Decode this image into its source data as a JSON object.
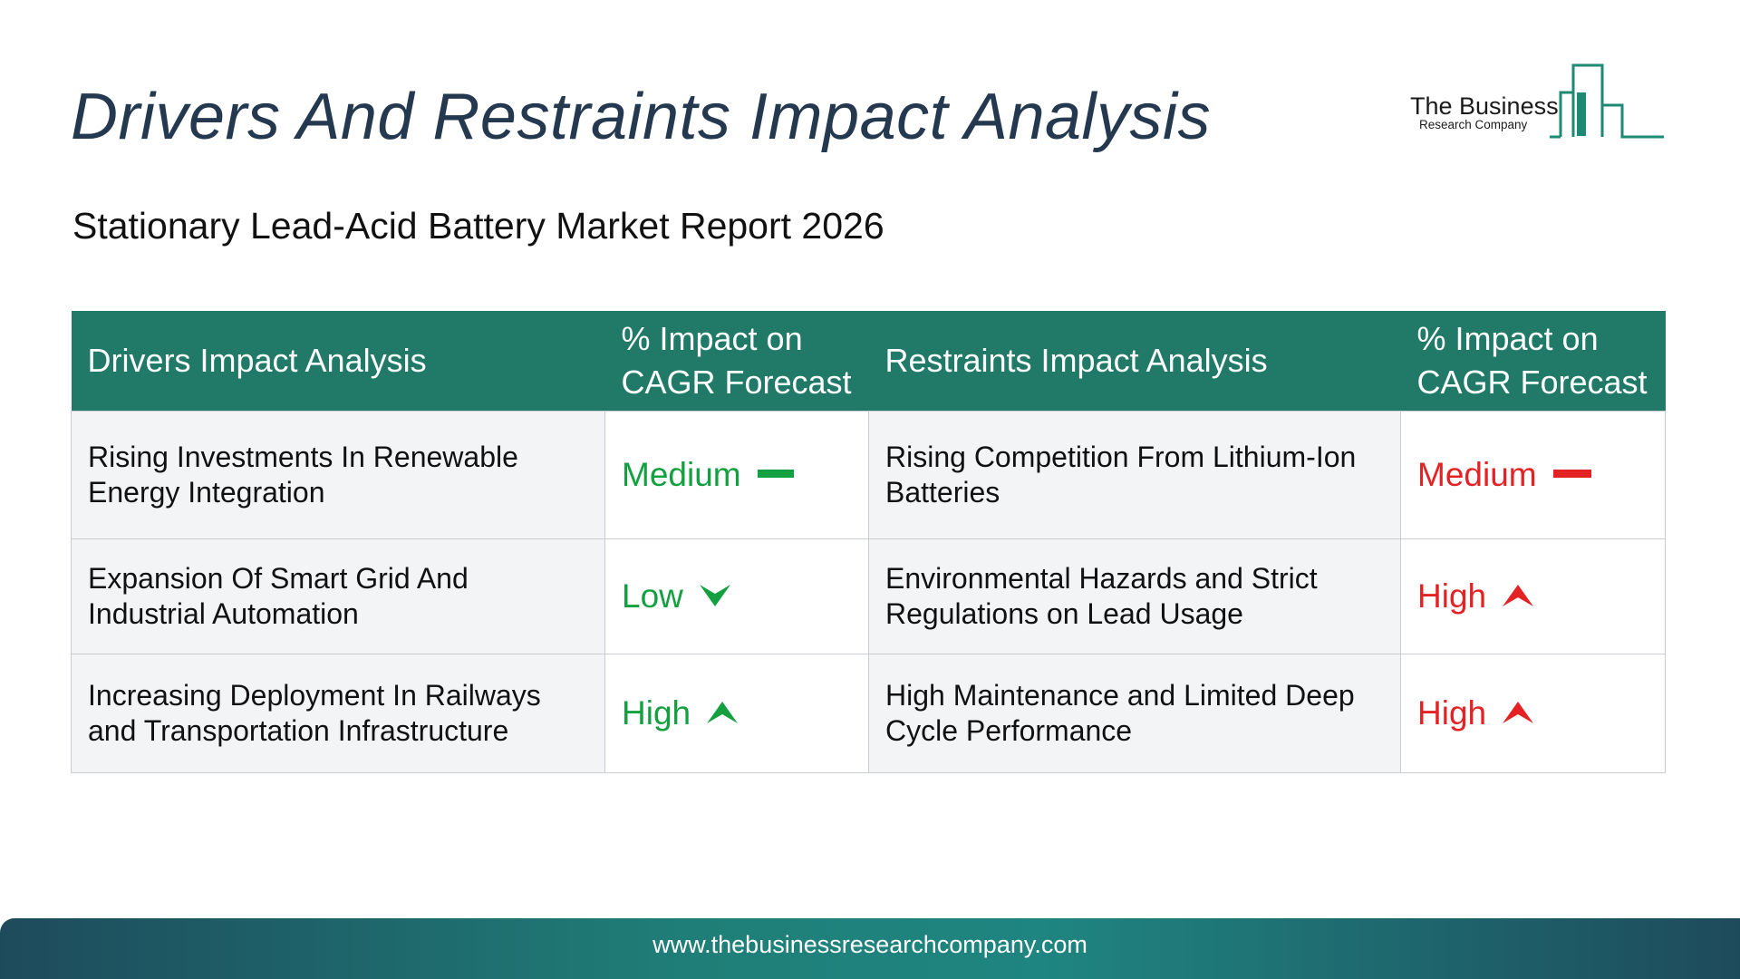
{
  "header": {
    "title": "Drivers And Restraints Impact Analysis",
    "subtitle": "Stationary Lead-Acid Battery Market Report 2026"
  },
  "logo": {
    "line1": "The Business",
    "line2": "Research Company",
    "color": "#1f8a74"
  },
  "table": {
    "headers": {
      "drivers": "Drivers Impact Analysis",
      "drivers_impact": "% Impact on CAGR Forecast",
      "restraints": "Restraints Impact Analysis",
      "restraints_impact": "% Impact on CAGR Forecast"
    },
    "rows": [
      {
        "driver": "Rising Investments In Renewable Energy Integration",
        "driver_level": "Medium",
        "driver_icon": "dash-icon",
        "restraint": "Rising Competition From Lithium-Ion Batteries",
        "restraint_level": "Medium",
        "restraint_icon": "dash-icon"
      },
      {
        "driver": "Expansion Of Smart Grid And Industrial Automation",
        "driver_level": "Low",
        "driver_icon": "arrow-down-icon",
        "restraint": "Environmental Hazards and Strict Regulations on Lead Usage",
        "restraint_level": "High",
        "restraint_icon": "arrow-up-icon"
      },
      {
        "driver": "Increasing Deployment In Railways and Transportation Infrastructure",
        "driver_level": "High",
        "driver_icon": "arrow-up-icon",
        "restraint": "High Maintenance and Limited Deep Cycle Performance",
        "restraint_level": "High",
        "restraint_icon": "arrow-up-icon"
      }
    ],
    "colors": {
      "header_bg": "#217a67",
      "driver_level": "#13a040",
      "restraint_level": "#e42224"
    }
  },
  "footer": {
    "url": "www.thebusinessresearchcompany.com"
  }
}
